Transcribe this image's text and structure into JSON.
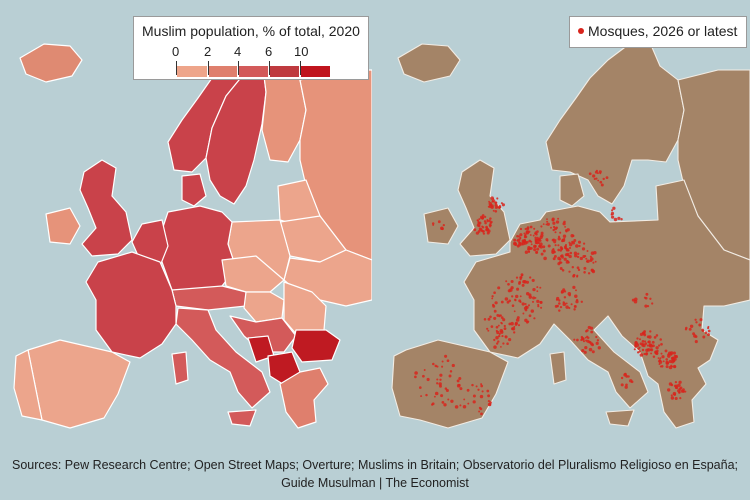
{
  "left_map": {
    "legend_title": "Muslim population, % of total, 2020",
    "scale_ticks": [
      "0",
      "2",
      "4",
      "6",
      "10"
    ],
    "scale_colors": [
      "#eea58a",
      "#df7f6d",
      "#d35a5a",
      "#bf3a3f",
      "#c0141d"
    ]
  },
  "right_map": {
    "legend_title": "Mosques, 2026 or latest",
    "dot_color": "#d8241c",
    "land_color": "#a48467"
  },
  "sources": {
    "line1": "Sources: Pew Research Centre; Open Street Maps; Overture; Muslims in Britain; Observatorio del Pluralismo Religioso en España;",
    "line2": "Guide Musulman | The Economist"
  }
}
